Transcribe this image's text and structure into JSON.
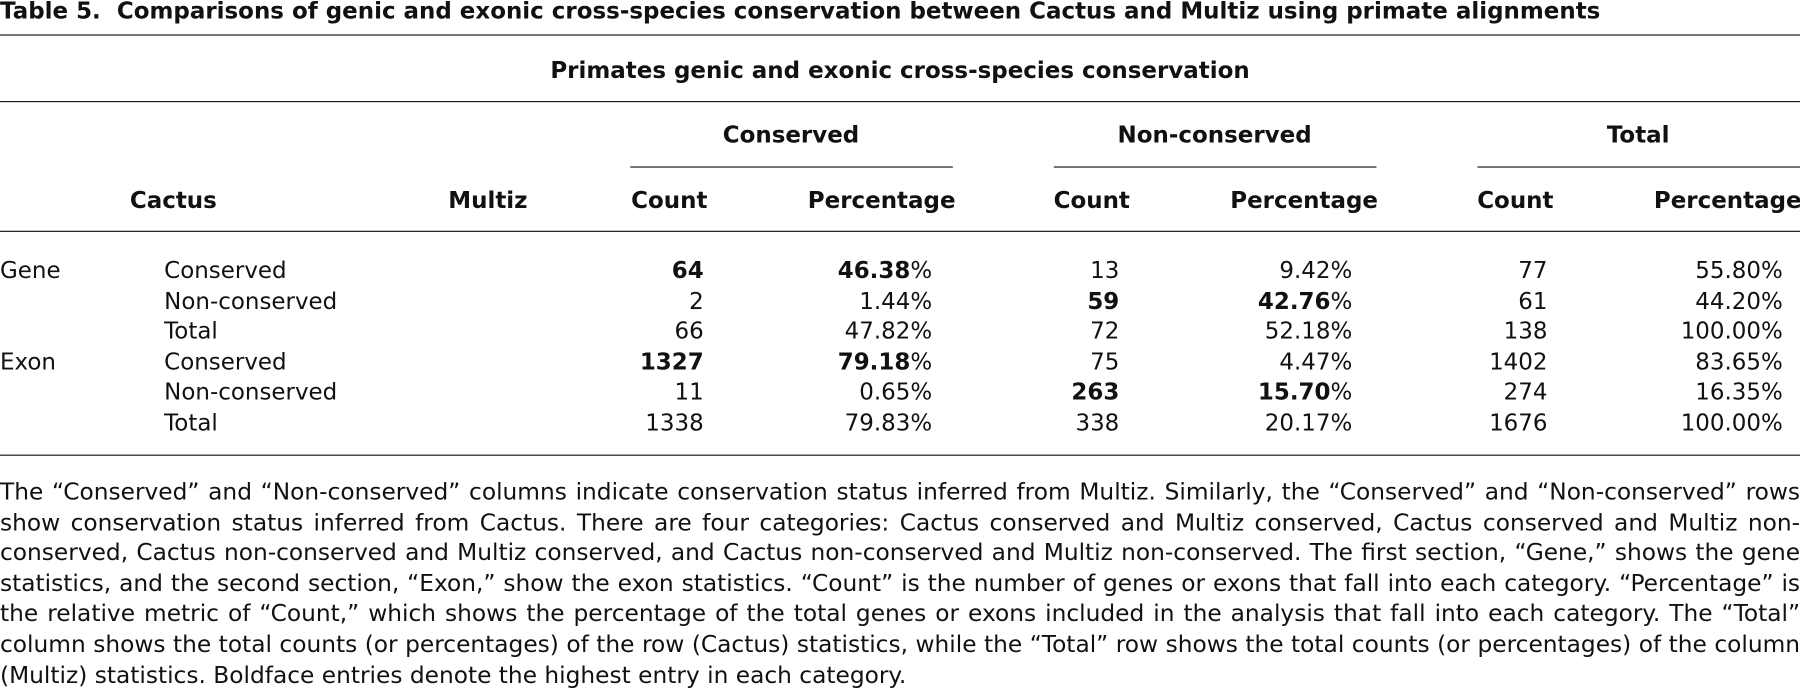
{
  "title": {
    "label": "Table 5.",
    "text": "Comparisons of genic and exonic cross-species conservation between Cactus and Multiz using primate alignments"
  },
  "table": {
    "subheader": "Primates genic and exonic cross-species conservation",
    "column_groups": [
      "Conserved",
      "Non-conserved",
      "Total"
    ],
    "columns": [
      "Cactus",
      "Multiz",
      "Count",
      "Percentage",
      "Count",
      "Percentage",
      "Count",
      "Percentage"
    ],
    "rows": [
      {
        "section": "Gene",
        "cactus": "Conserved",
        "cells": [
          {
            "strong": "64"
          },
          {
            "strong": "46.38",
            "text": "%"
          },
          "13",
          "9.42%",
          "77",
          "55.80%"
        ]
      },
      {
        "cactus": "Non-conserved",
        "cells": [
          "2",
          "1.44%",
          {
            "strong": "59"
          },
          {
            "strong": "42.76",
            "text": "%"
          },
          "61",
          "44.20%"
        ]
      },
      {
        "cactus": "Total",
        "cells": [
          "66",
          "47.82%",
          "72",
          "52.18%",
          "138",
          "100.00%"
        ]
      },
      {
        "section": "Exon",
        "cactus": "Conserved",
        "cells": [
          {
            "strong": "1327"
          },
          {
            "strong": "79.18",
            "text": "%"
          },
          "75",
          "4.47%",
          "1402",
          "83.65%"
        ]
      },
      {
        "cactus": "Non-conserved",
        "cells": [
          "11",
          "0.65%",
          {
            "strong": "263"
          },
          {
            "strong": "15.70",
            "text": "%"
          },
          "274",
          "16.35%"
        ]
      },
      {
        "cactus": "Total",
        "cells": [
          "1338",
          "79.83%",
          "338",
          "20.17%",
          "1676",
          "100.00%"
        ]
      }
    ]
  },
  "footnote": "The “Conserved” and “Non-conserved” columns indicate conservation status inferred from Multiz. Similarly, the “Conserved” and “Non-conserved” rows show conservation status inferred from Cactus. There are four categories: Cactus conserved and Multiz conserved, Cactus conserved and Multiz non-conserved, Cactus non-conserved and Multiz conserved, and Cactus non-conserved and Multiz non-conserved. The first section, “Gene,” shows the gene statistics, and the second section, “Exon,” show the exon statistics. “Count” is the number of genes or exons that fall into each category. “Percentage” is the relative metric of “Count,” which shows the percentage of the total genes or exons included in the analysis that fall into each category. The “Total” column shows the total counts (or percentages) of the row (Cactus) statistics, while the “Total” row shows the total counts (or percentages) of the column (Multiz) statistics. Boldface entries denote the highest entry in each category."
}
